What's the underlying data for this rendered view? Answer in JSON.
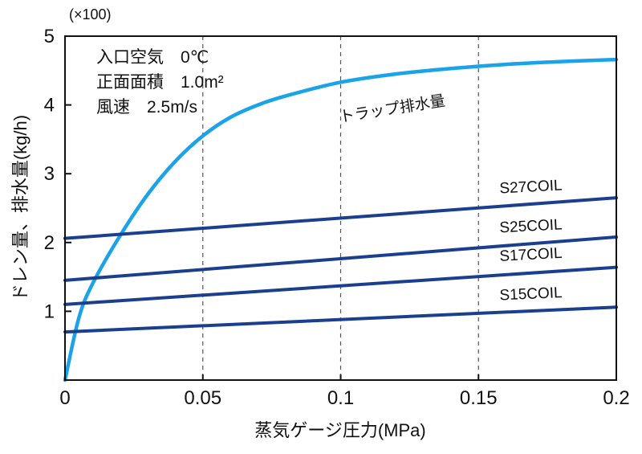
{
  "chart_data": {
    "type": "line",
    "multiplier": "(×100)",
    "xlabel": "蒸気ゲージ圧力(MPa)",
    "ylabel": "ドレン量、排水量(kg/h)",
    "xlim": [
      0,
      0.2
    ],
    "ylim": [
      0,
      5
    ],
    "x_ticks": [
      0,
      0.05,
      0.1,
      0.15,
      0.2
    ],
    "x_tick_labels": [
      "0",
      "0.05",
      "0.1",
      "0.15",
      "0.2"
    ],
    "y_ticks": [
      1,
      2,
      3,
      4,
      5
    ],
    "y_tick_labels": [
      "1",
      "2",
      "3",
      "4",
      "5"
    ],
    "grid": "vertical dashed",
    "conditions": [
      "入口空気　0℃",
      "正面面積　1.0m²",
      "風速　2.5m/s"
    ],
    "series": [
      {
        "name": "トラップ排水量",
        "color": "#1aa3e8",
        "x": [
          0,
          0.005,
          0.01,
          0.02,
          0.03,
          0.04,
          0.05,
          0.06,
          0.07,
          0.08,
          0.1,
          0.12,
          0.14,
          0.16,
          0.18,
          0.2
        ],
        "y": [
          0,
          0.9,
          1.4,
          2.1,
          2.7,
          3.18,
          3.55,
          3.82,
          4.0,
          4.13,
          4.33,
          4.45,
          4.53,
          4.59,
          4.63,
          4.66
        ]
      },
      {
        "name": "S27COIL",
        "color": "#1b3f8f",
        "x": [
          0,
          0.2
        ],
        "y": [
          2.06,
          2.65
        ]
      },
      {
        "name": "S25COIL",
        "color": "#1b3f8f",
        "x": [
          0,
          0.2
        ],
        "y": [
          1.45,
          2.08
        ]
      },
      {
        "name": "S17COIL",
        "color": "#1b3f8f",
        "x": [
          0,
          0.2
        ],
        "y": [
          1.1,
          1.64
        ]
      },
      {
        "name": "S15COIL",
        "color": "#1b3f8f",
        "x": [
          0,
          0.2
        ],
        "y": [
          0.7,
          1.06
        ]
      }
    ]
  }
}
